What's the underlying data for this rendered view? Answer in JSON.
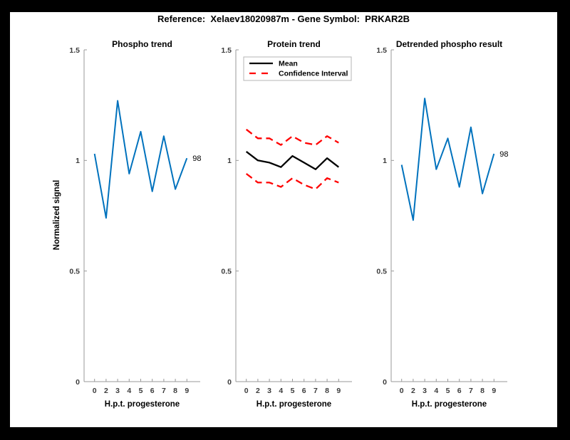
{
  "figure": {
    "title": "Reference:  Xelaev18020987m - Gene Symbol:  PRKAR2B",
    "background_color": "#000000",
    "canvas_color": "#ffffff"
  },
  "colors": {
    "line_blue": "#0072BD",
    "line_red": "#FF0000",
    "line_black": "#000000",
    "axis_gray": "#999999",
    "tick_text": "#3b3b3b",
    "legend_border": "#b5b5b5"
  },
  "chart_data": [
    {
      "type": "line",
      "title": "Phospho trend",
      "xlabel": "H.p.t. progesterone",
      "ylabel": "Normalized signal",
      "x_ticklabels": [
        "0",
        "2",
        "3",
        "4",
        "5",
        "6",
        "7",
        "8",
        "9"
      ],
      "y_ticks": [
        0,
        0.5,
        1,
        1.5
      ],
      "y_ticklabels": [
        "0",
        "0.5",
        "1",
        "1.5"
      ],
      "ylim": [
        0,
        1.5
      ],
      "grid": false,
      "legend": null,
      "end_label": "98",
      "series": [
        {
          "name": "phospho-signal",
          "color": "#0072BD",
          "style": "solid",
          "width": 2,
          "values": [
            1.03,
            0.74,
            1.27,
            0.94,
            1.13,
            0.86,
            1.11,
            0.87,
            1.01
          ]
        }
      ]
    },
    {
      "type": "line",
      "title": "Protein trend",
      "xlabel": "H.p.t. progesterone",
      "ylabel": "",
      "x_ticklabels": [
        "0",
        "2",
        "3",
        "4",
        "5",
        "6",
        "7",
        "8",
        "9"
      ],
      "y_ticks": [
        0,
        0.5,
        1,
        1.5
      ],
      "y_ticklabels": [
        "0",
        "0.5",
        "1",
        "1.5"
      ],
      "ylim": [
        0,
        1.5
      ],
      "grid": false,
      "legend": {
        "position": "top-left",
        "entries": [
          {
            "label": "Mean",
            "color": "#000000",
            "style": "solid"
          },
          {
            "label": "Confidence Interval",
            "color": "#FF0000",
            "style": "dashed"
          }
        ]
      },
      "end_label": null,
      "series": [
        {
          "name": "mean",
          "color": "#000000",
          "style": "solid",
          "width": 2.3,
          "values": [
            1.04,
            1.0,
            0.99,
            0.97,
            1.02,
            0.99,
            0.96,
            1.01,
            0.97
          ]
        },
        {
          "name": "confidence-upper",
          "color": "#FF0000",
          "style": "dashed",
          "width": 2.3,
          "values": [
            1.14,
            1.1,
            1.1,
            1.07,
            1.11,
            1.08,
            1.07,
            1.11,
            1.08
          ]
        },
        {
          "name": "confidence-lower",
          "color": "#FF0000",
          "style": "dashed",
          "width": 2.3,
          "values": [
            0.94,
            0.9,
            0.9,
            0.88,
            0.92,
            0.89,
            0.87,
            0.92,
            0.9
          ]
        }
      ]
    },
    {
      "type": "line",
      "title": "Detrended phospho result",
      "xlabel": "H.p.t. progesterone",
      "ylabel": "",
      "x_ticklabels": [
        "0",
        "2",
        "3",
        "4",
        "5",
        "6",
        "7",
        "8",
        "9"
      ],
      "y_ticks": [
        0,
        0.5,
        1,
        1.5
      ],
      "y_ticklabels": [
        "0",
        "0.5",
        "1",
        "1.5"
      ],
      "ylim": [
        0,
        1.5
      ],
      "grid": false,
      "legend": null,
      "end_label": "98",
      "series": [
        {
          "name": "detrended-phospho-signal",
          "color": "#0072BD",
          "style": "solid",
          "width": 2,
          "values": [
            0.98,
            0.73,
            1.28,
            0.96,
            1.1,
            0.88,
            1.15,
            0.85,
            1.03
          ]
        }
      ]
    }
  ]
}
